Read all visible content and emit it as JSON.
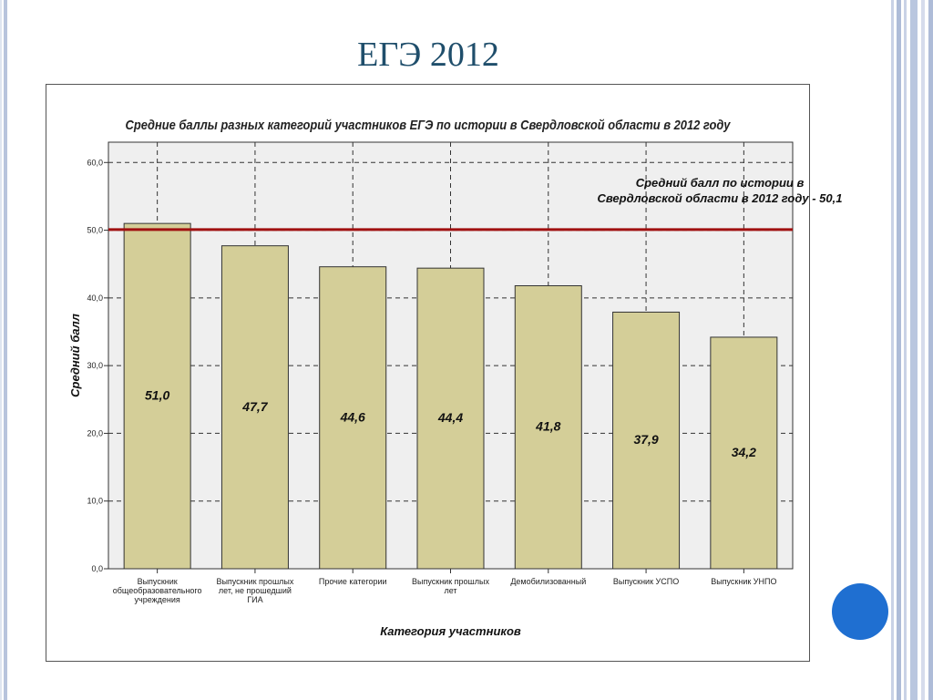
{
  "slide": {
    "title": "ЕГЭ 2012"
  },
  "chart_data": {
    "type": "bar",
    "title": "Средние баллы разных категорий участников ЕГЭ по истории в Свердловской области в 2012 году",
    "xlabel": "Категория участников",
    "ylabel": "Средний балл",
    "ylim": [
      0,
      63
    ],
    "yticks": [
      "0,0",
      "10,0",
      "20,0",
      "30,0",
      "40,0",
      "50,0",
      "60,0"
    ],
    "categories": [
      [
        "Выпускник",
        "общеобразовательного",
        "учреждения"
      ],
      [
        "Выпускник прошлых",
        "лет, не прошедший",
        "ГИА"
      ],
      [
        "Прочие категории"
      ],
      [
        "Выпускник прошлых",
        "лет"
      ],
      [
        "Демобилизованный"
      ],
      [
        "Выпускник УСПО"
      ],
      [
        "Выпускник УНПО"
      ]
    ],
    "values": [
      51.0,
      47.7,
      44.6,
      44.4,
      41.8,
      37.9,
      34.2
    ],
    "value_labels": [
      "51,0",
      "47,7",
      "44,6",
      "44,4",
      "41,8",
      "37,9",
      "34,2"
    ],
    "reference_line": {
      "value": 50.1,
      "label_lines": [
        "Средний балл по истории в",
        "Свердловской области в 2012 году - 50,1"
      ],
      "color": "#a01010"
    },
    "grid": true,
    "colors": {
      "bar": "#d4ce98",
      "bar_edge": "#333333",
      "plot_bg": "#efefef",
      "accent": "#1f6fd1",
      "title": "#1f4e6b"
    }
  }
}
